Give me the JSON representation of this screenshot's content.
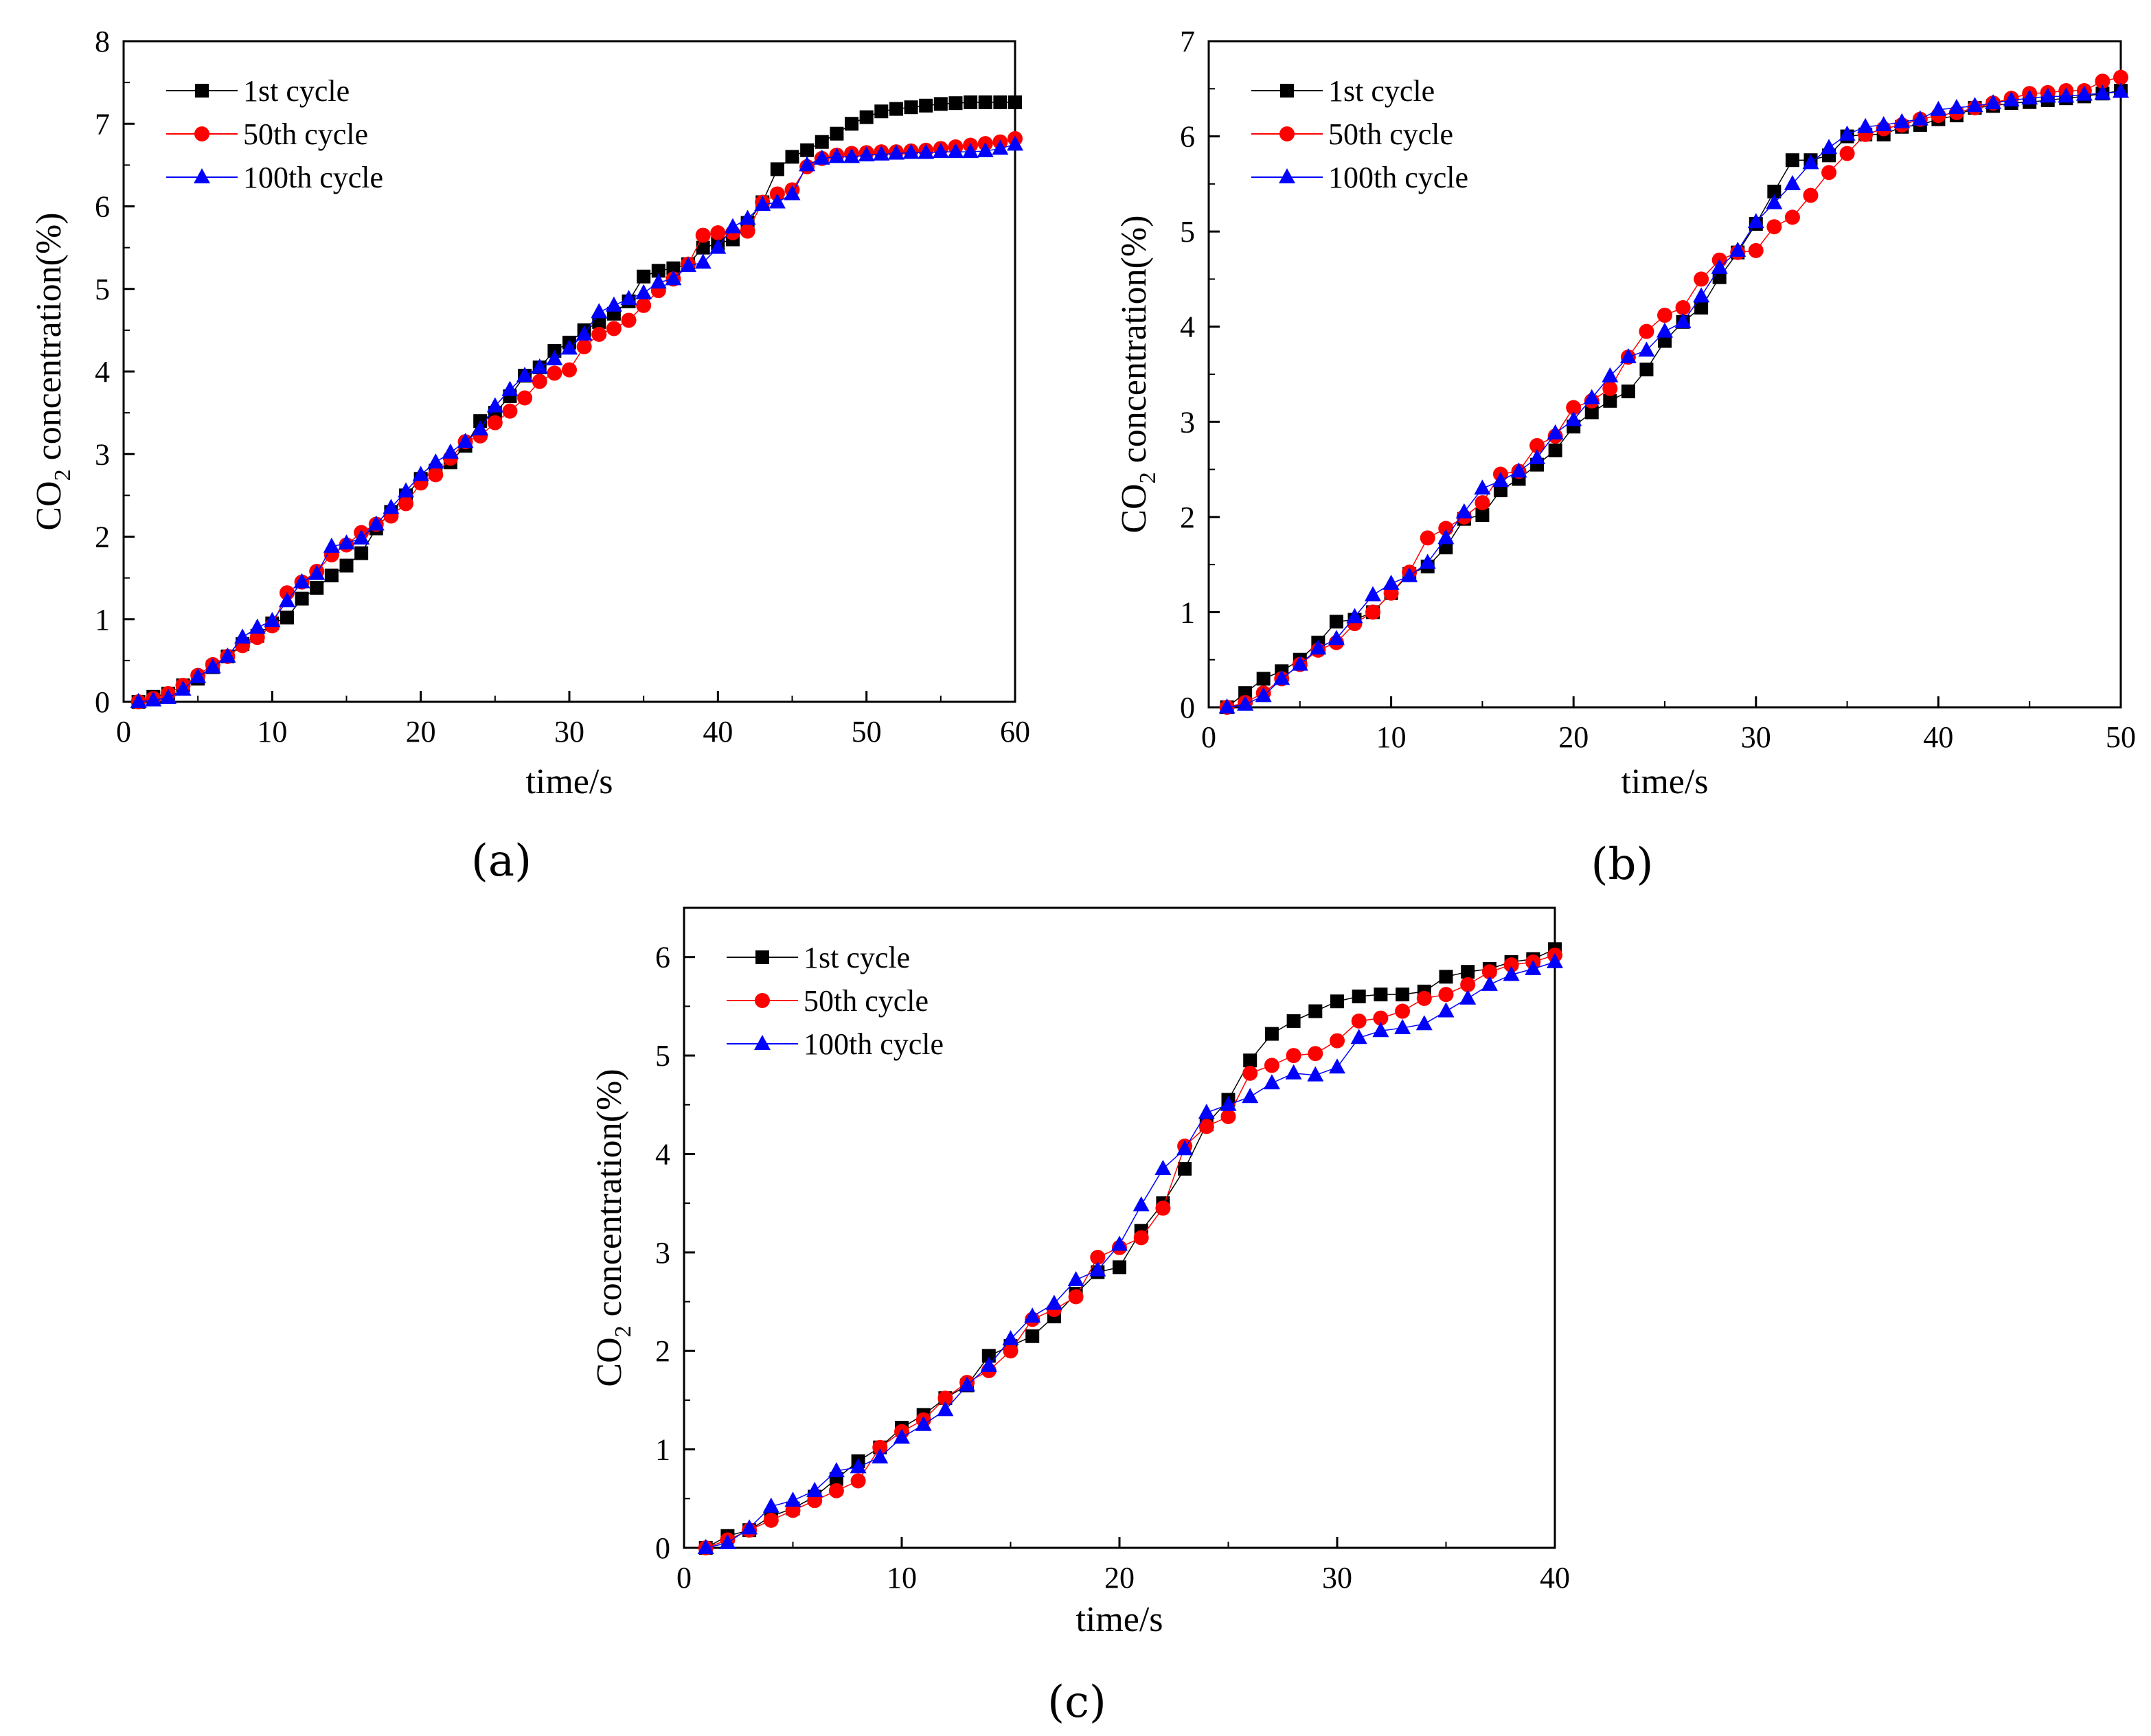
{
  "chart_data": [
    {
      "type": "line",
      "panel_label": "(a)",
      "xlabel": "time/s",
      "ylabel_main": "CO",
      "ylabel_sub": "2",
      "ylabel_rest": " concentration(%)",
      "xlim": [
        0,
        60
      ],
      "ylim": [
        0,
        8
      ],
      "xticks": [
        "0",
        "10",
        "20",
        "30",
        "40",
        "50",
        "60"
      ],
      "yticks": [
        "0",
        "1",
        "2",
        "3",
        "4",
        "5",
        "6",
        "7",
        "8"
      ],
      "legend": [
        "1st cycle",
        "50th cycle",
        "100th cycle"
      ],
      "series": [
        {
          "name": "1st cycle",
          "color": "#000000",
          "marker": "square",
          "x": [
            1,
            2,
            3,
            4,
            5,
            6,
            7,
            8,
            9,
            10,
            11,
            12,
            13,
            14,
            15,
            16,
            17,
            18,
            19,
            20,
            21,
            22,
            23,
            24,
            25,
            26,
            27,
            28,
            29,
            30,
            31,
            32,
            33,
            34,
            35,
            36,
            37,
            38,
            39,
            40,
            41,
            42,
            43,
            44,
            45,
            46,
            47,
            48,
            49,
            50,
            51,
            52,
            53,
            54,
            55,
            56,
            57,
            58,
            59,
            60
          ],
          "y": [
            0.0,
            0.06,
            0.1,
            0.2,
            0.28,
            0.42,
            0.55,
            0.7,
            0.8,
            0.95,
            1.02,
            1.25,
            1.38,
            1.53,
            1.65,
            1.8,
            2.1,
            2.3,
            2.5,
            2.7,
            2.8,
            2.9,
            3.1,
            3.4,
            3.5,
            3.7,
            3.95,
            4.05,
            4.25,
            4.35,
            4.5,
            4.6,
            4.7,
            4.85,
            5.15,
            5.22,
            5.25,
            5.3,
            5.5,
            5.55,
            5.6,
            5.8,
            6.05,
            6.45,
            6.6,
            6.68,
            6.78,
            6.88,
            7.0,
            7.08,
            7.15,
            7.18,
            7.2,
            7.22,
            7.24,
            7.25,
            7.26,
            7.26,
            7.26,
            7.26
          ]
        },
        {
          "name": "50th cycle",
          "color": "#ff0000",
          "marker": "circle",
          "x": [
            1,
            2,
            3,
            4,
            5,
            6,
            7,
            8,
            9,
            10,
            11,
            12,
            13,
            14,
            15,
            16,
            17,
            18,
            19,
            20,
            21,
            22,
            23,
            24,
            25,
            26,
            27,
            28,
            29,
            30,
            31,
            32,
            33,
            34,
            35,
            36,
            37,
            38,
            39,
            40,
            41,
            42,
            43,
            44,
            45,
            46,
            47,
            48,
            49,
            50,
            51,
            52,
            53,
            54,
            55,
            56,
            57,
            58,
            59,
            60
          ],
          "y": [
            0.0,
            0.04,
            0.1,
            0.2,
            0.32,
            0.45,
            0.55,
            0.68,
            0.78,
            0.92,
            1.32,
            1.45,
            1.58,
            1.78,
            1.9,
            2.05,
            2.15,
            2.25,
            2.4,
            2.65,
            2.75,
            2.95,
            3.15,
            3.22,
            3.38,
            3.52,
            3.68,
            3.88,
            3.98,
            4.02,
            4.3,
            4.45,
            4.52,
            4.62,
            4.8,
            4.98,
            5.12,
            5.3,
            5.65,
            5.68,
            5.68,
            5.7,
            6.05,
            6.15,
            6.2,
            6.48,
            6.58,
            6.62,
            6.64,
            6.65,
            6.66,
            6.66,
            6.67,
            6.68,
            6.7,
            6.72,
            6.74,
            6.76,
            6.78,
            6.82
          ]
        },
        {
          "name": "100th cycle",
          "color": "#0000ff",
          "marker": "triangle",
          "x": [
            1,
            2,
            3,
            4,
            5,
            6,
            7,
            8,
            9,
            10,
            11,
            12,
            13,
            14,
            15,
            16,
            17,
            18,
            19,
            20,
            21,
            22,
            23,
            24,
            25,
            26,
            27,
            28,
            29,
            30,
            31,
            32,
            33,
            34,
            35,
            36,
            37,
            38,
            39,
            40,
            41,
            42,
            43,
            44,
            45,
            46,
            47,
            48,
            49,
            50,
            51,
            52,
            53,
            54,
            55,
            56,
            57,
            58,
            59,
            60
          ],
          "y": [
            0.0,
            0.02,
            0.05,
            0.15,
            0.3,
            0.42,
            0.55,
            0.78,
            0.9,
            0.98,
            1.22,
            1.45,
            1.55,
            1.88,
            1.92,
            1.98,
            2.15,
            2.35,
            2.55,
            2.75,
            2.9,
            3.02,
            3.15,
            3.3,
            3.58,
            3.78,
            3.95,
            4.05,
            4.15,
            4.28,
            4.45,
            4.72,
            4.8,
            4.88,
            4.95,
            5.08,
            5.12,
            5.28,
            5.32,
            5.5,
            5.75,
            5.85,
            6.02,
            6.05,
            6.15,
            6.5,
            6.58,
            6.6,
            6.6,
            6.62,
            6.63,
            6.64,
            6.65,
            6.65,
            6.66,
            6.66,
            6.66,
            6.67,
            6.7,
            6.75
          ]
        }
      ]
    },
    {
      "type": "line",
      "panel_label": "(b)",
      "xlabel": "time/s",
      "ylabel_main": "CO",
      "ylabel_sub": "2",
      "ylabel_rest": " concentration(%)",
      "xlim": [
        0,
        50
      ],
      "ylim": [
        0,
        7
      ],
      "xticks": [
        "0",
        "10",
        "20",
        "30",
        "40",
        "50"
      ],
      "yticks": [
        "0",
        "1",
        "2",
        "3",
        "4",
        "5",
        "6",
        "7"
      ],
      "legend": [
        "1st cycle",
        "50th cycle",
        "100th cycle"
      ],
      "series": [
        {
          "name": "1st cycle",
          "color": "#000000",
          "marker": "square",
          "x": [
            1,
            2,
            3,
            4,
            5,
            6,
            7,
            8,
            9,
            10,
            11,
            12,
            13,
            14,
            15,
            16,
            17,
            18,
            19,
            20,
            21,
            22,
            23,
            24,
            25,
            26,
            27,
            28,
            29,
            30,
            31,
            32,
            33,
            34,
            35,
            36,
            37,
            38,
            39,
            40,
            41,
            42,
            43,
            44,
            45,
            46,
            47,
            48,
            49,
            50
          ],
          "y": [
            0.0,
            0.15,
            0.3,
            0.38,
            0.5,
            0.68,
            0.9,
            0.92,
            1.0,
            1.2,
            1.4,
            1.48,
            1.68,
            1.98,
            2.02,
            2.28,
            2.4,
            2.55,
            2.7,
            2.95,
            3.1,
            3.22,
            3.32,
            3.55,
            3.85,
            4.05,
            4.2,
            4.52,
            4.78,
            5.08,
            5.42,
            5.75,
            5.75,
            5.8,
            6.0,
            6.02,
            6.02,
            6.1,
            6.12,
            6.18,
            6.22,
            6.3,
            6.32,
            6.35,
            6.36,
            6.38,
            6.4,
            6.42,
            6.45,
            6.48
          ]
        },
        {
          "name": "50th cycle",
          "color": "#ff0000",
          "marker": "circle",
          "x": [
            1,
            2,
            3,
            4,
            5,
            6,
            7,
            8,
            9,
            10,
            11,
            12,
            13,
            14,
            15,
            16,
            17,
            18,
            19,
            20,
            21,
            22,
            23,
            24,
            25,
            26,
            27,
            28,
            29,
            30,
            31,
            32,
            33,
            34,
            35,
            36,
            37,
            38,
            39,
            40,
            41,
            42,
            43,
            44,
            45,
            46,
            47,
            48,
            49,
            50
          ],
          "y": [
            0.0,
            0.05,
            0.15,
            0.3,
            0.45,
            0.6,
            0.68,
            0.88,
            1.0,
            1.2,
            1.42,
            1.78,
            1.88,
            2.0,
            2.15,
            2.45,
            2.48,
            2.75,
            2.85,
            3.15,
            3.22,
            3.35,
            3.68,
            3.95,
            4.12,
            4.2,
            4.5,
            4.7,
            4.78,
            4.8,
            5.05,
            5.15,
            5.38,
            5.62,
            5.82,
            6.02,
            6.08,
            6.12,
            6.18,
            6.22,
            6.25,
            6.3,
            6.35,
            6.4,
            6.45,
            6.46,
            6.48,
            6.48,
            6.58,
            6.62
          ]
        },
        {
          "name": "100th cycle",
          "color": "#0000ff",
          "marker": "triangle",
          "x": [
            1,
            2,
            3,
            4,
            5,
            6,
            7,
            8,
            9,
            10,
            11,
            12,
            13,
            14,
            15,
            16,
            17,
            18,
            19,
            20,
            21,
            22,
            23,
            24,
            25,
            26,
            27,
            28,
            29,
            30,
            31,
            32,
            33,
            34,
            35,
            36,
            37,
            38,
            39,
            40,
            41,
            42,
            43,
            44,
            45,
            46,
            47,
            48,
            49,
            50
          ],
          "y": [
            0.0,
            0.03,
            0.12,
            0.3,
            0.45,
            0.62,
            0.72,
            0.95,
            1.18,
            1.3,
            1.38,
            1.52,
            1.78,
            2.05,
            2.3,
            2.38,
            2.48,
            2.62,
            2.88,
            3.02,
            3.25,
            3.48,
            3.68,
            3.75,
            3.95,
            4.05,
            4.32,
            4.62,
            4.8,
            5.1,
            5.3,
            5.5,
            5.72,
            5.88,
            6.02,
            6.1,
            6.12,
            6.15,
            6.18,
            6.28,
            6.3,
            6.32,
            6.35,
            6.38,
            6.4,
            6.42,
            6.42,
            6.44,
            6.45,
            6.47
          ]
        }
      ]
    },
    {
      "type": "line",
      "panel_label": "(c)",
      "xlabel": "time/s",
      "ylabel_main": "CO",
      "ylabel_sub": "2",
      "ylabel_rest": " concentration(%)",
      "xlim": [
        0,
        40
      ],
      "ylim": [
        0,
        6.5
      ],
      "xticks": [
        "0",
        "10",
        "20",
        "30",
        "40"
      ],
      "yticks": [
        "0",
        "1",
        "2",
        "3",
        "4",
        "5",
        "6"
      ],
      "legend": [
        "1st cycle",
        "50th cycle",
        "100th cycle"
      ],
      "series": [
        {
          "name": "1st cycle",
          "color": "#000000",
          "marker": "square",
          "x": [
            1,
            2,
            3,
            4,
            5,
            6,
            7,
            8,
            9,
            10,
            11,
            12,
            13,
            14,
            15,
            16,
            17,
            18,
            19,
            20,
            21,
            22,
            23,
            24,
            25,
            26,
            27,
            28,
            29,
            30,
            31,
            32,
            33,
            34,
            35,
            36,
            37,
            38,
            39,
            40
          ],
          "y": [
            0.0,
            0.12,
            0.18,
            0.32,
            0.4,
            0.52,
            0.7,
            0.88,
            1.02,
            1.22,
            1.35,
            1.52,
            1.65,
            1.95,
            2.05,
            2.15,
            2.35,
            2.58,
            2.8,
            2.85,
            3.22,
            3.5,
            3.85,
            4.3,
            4.55,
            4.95,
            5.22,
            5.35,
            5.45,
            5.55,
            5.6,
            5.62,
            5.62,
            5.65,
            5.8,
            5.85,
            5.88,
            5.95,
            5.98,
            6.08
          ]
        },
        {
          "name": "50th cycle",
          "color": "#ff0000",
          "marker": "circle",
          "x": [
            1,
            2,
            3,
            4,
            5,
            6,
            7,
            8,
            9,
            10,
            11,
            12,
            13,
            14,
            15,
            16,
            17,
            18,
            19,
            20,
            21,
            22,
            23,
            24,
            25,
            26,
            27,
            28,
            29,
            30,
            31,
            32,
            33,
            34,
            35,
            36,
            37,
            38,
            39,
            40
          ],
          "y": [
            0.0,
            0.08,
            0.18,
            0.28,
            0.38,
            0.48,
            0.58,
            0.68,
            1.02,
            1.18,
            1.3,
            1.52,
            1.68,
            1.8,
            2.0,
            2.32,
            2.42,
            2.55,
            2.95,
            3.05,
            3.15,
            3.45,
            4.08,
            4.28,
            4.38,
            4.82,
            4.9,
            5.0,
            5.02,
            5.15,
            5.35,
            5.38,
            5.45,
            5.58,
            5.62,
            5.72,
            5.85,
            5.92,
            5.95,
            6.02
          ]
        },
        {
          "name": "100th cycle",
          "color": "#0000ff",
          "marker": "triangle",
          "x": [
            1,
            2,
            3,
            4,
            5,
            6,
            7,
            8,
            9,
            10,
            11,
            12,
            13,
            14,
            15,
            16,
            17,
            18,
            19,
            20,
            21,
            22,
            23,
            24,
            25,
            26,
            27,
            28,
            29,
            30,
            31,
            32,
            33,
            34,
            35,
            36,
            37,
            38,
            39,
            40
          ],
          "y": [
            0.0,
            0.05,
            0.2,
            0.42,
            0.48,
            0.58,
            0.78,
            0.82,
            0.92,
            1.12,
            1.25,
            1.4,
            1.65,
            1.85,
            2.12,
            2.35,
            2.48,
            2.72,
            2.82,
            3.08,
            3.48,
            3.85,
            4.05,
            4.42,
            4.5,
            4.58,
            4.72,
            4.82,
            4.8,
            4.88,
            5.18,
            5.25,
            5.28,
            5.32,
            5.45,
            5.58,
            5.72,
            5.82,
            5.88,
            5.95
          ]
        }
      ]
    }
  ]
}
